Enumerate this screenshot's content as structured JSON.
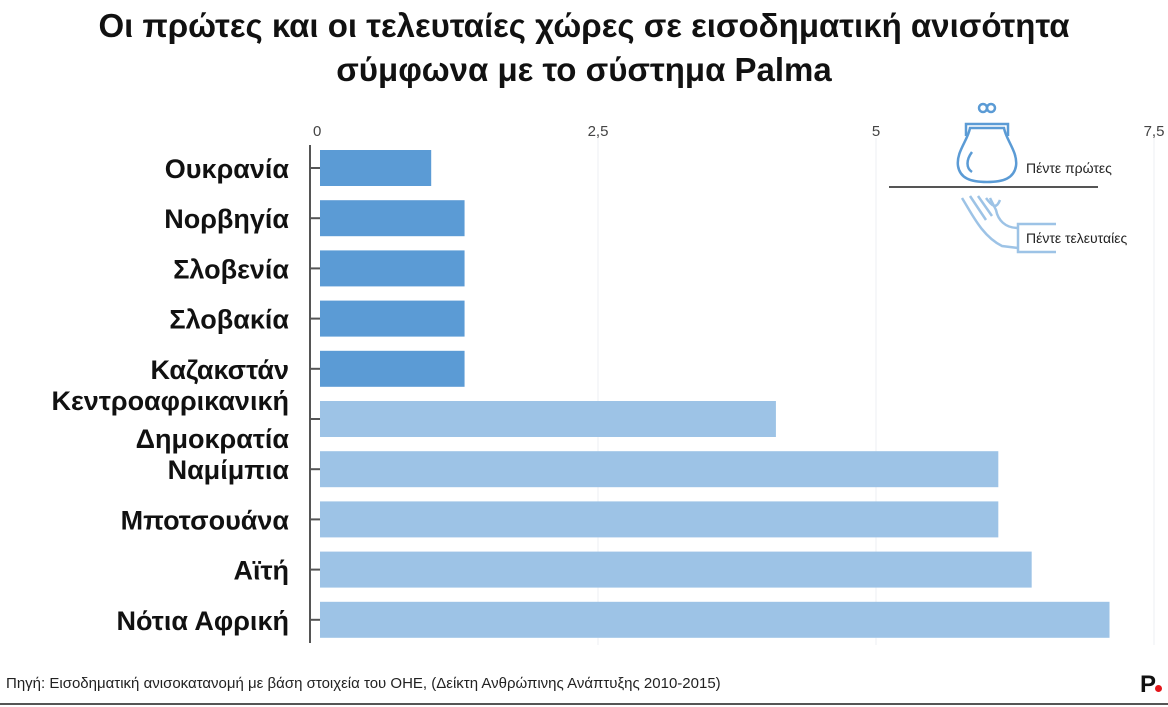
{
  "chart_data": {
    "type": "bar",
    "orientation": "horizontal",
    "title": "Οι πρώτες και οι τελευταίες χώρες σε εισοδηματική ανισότητα σύμφωνα με το σύστημα Palma",
    "title_lines": [
      "Οι πρώτες και οι τελευταίες χώρες σε εισοδηματική ανισότητα",
      "σύμφωνα με το σύστημα Palma"
    ],
    "categories": [
      "Ουκρανία",
      "Νορβηγία",
      "Σλοβενία",
      "Σλοβακία",
      "Καζακστάν",
      "Κεντροαφρικανική Δημοκρατία",
      "Ναμίμπια",
      "Μποτσουάνα",
      "Αϊτή",
      "Νότια Αφρική"
    ],
    "category_lines": [
      [
        "Ουκρανία"
      ],
      [
        "Νορβηγία"
      ],
      [
        "Σλοβενία"
      ],
      [
        "Σλοβακία"
      ],
      [
        "Καζακστάν"
      ],
      [
        "Κεντροαφρικανική",
        "Δημοκρατία"
      ],
      [
        "Ναμίμπια"
      ],
      [
        "Μποτσουάνα"
      ],
      [
        "Αϊτή"
      ],
      [
        "Νότια Αφρική"
      ]
    ],
    "values": [
      1.0,
      1.3,
      1.3,
      1.3,
      1.3,
      4.1,
      6.1,
      6.1,
      6.4,
      7.1
    ],
    "groups": [
      "first",
      "first",
      "first",
      "first",
      "first",
      "last",
      "last",
      "last",
      "last",
      "last"
    ],
    "xlim": [
      0,
      7.5
    ],
    "xticks": [
      0,
      2.5,
      5,
      7.5
    ],
    "xtick_labels": [
      "0",
      "2,5",
      "5",
      "7,5"
    ],
    "grid": true,
    "legend": {
      "placement": "top-right",
      "items": [
        {
          "label": "Πέντε πρώτες",
          "icon": "purse-icon",
          "color": "#5b9bd5"
        },
        {
          "label": "Πέντε τελευταίες",
          "icon": "open-hand-icon",
          "color": "#9dc3e6"
        }
      ]
    },
    "colors": {
      "first": "#5b9bd5",
      "last": "#9dc3e6"
    }
  },
  "footer": {
    "source": "Πηγή: Εισοδηματική ανισοκατανομή με βάση στοιχεία του ΟΗΕ, (Δείκτη Ανθρώπινης Ανάπτυξης 2010-2015)",
    "logo": "P."
  }
}
